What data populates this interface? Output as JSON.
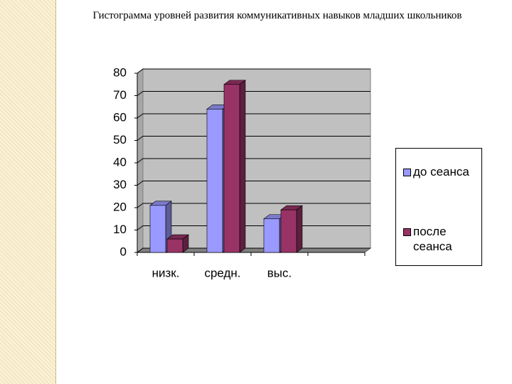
{
  "chart_data": {
    "type": "bar",
    "title": "Гистограмма уровней  развития коммуникативных навыков младших школьников",
    "categories": [
      "низк.",
      "средн.",
      "выс.",
      null
    ],
    "series": [
      {
        "name": "до сеанса",
        "color": "#9999ff",
        "values": [
          21,
          64,
          15,
          null
        ]
      },
      {
        "name": "после сеанса",
        "color": "#993366",
        "values": [
          6,
          75,
          19,
          null
        ]
      }
    ],
    "ylim": [
      0,
      80
    ],
    "yticks": [
      0,
      10,
      20,
      30,
      40,
      50,
      60,
      70,
      80
    ],
    "grid": true,
    "legend": "right"
  }
}
